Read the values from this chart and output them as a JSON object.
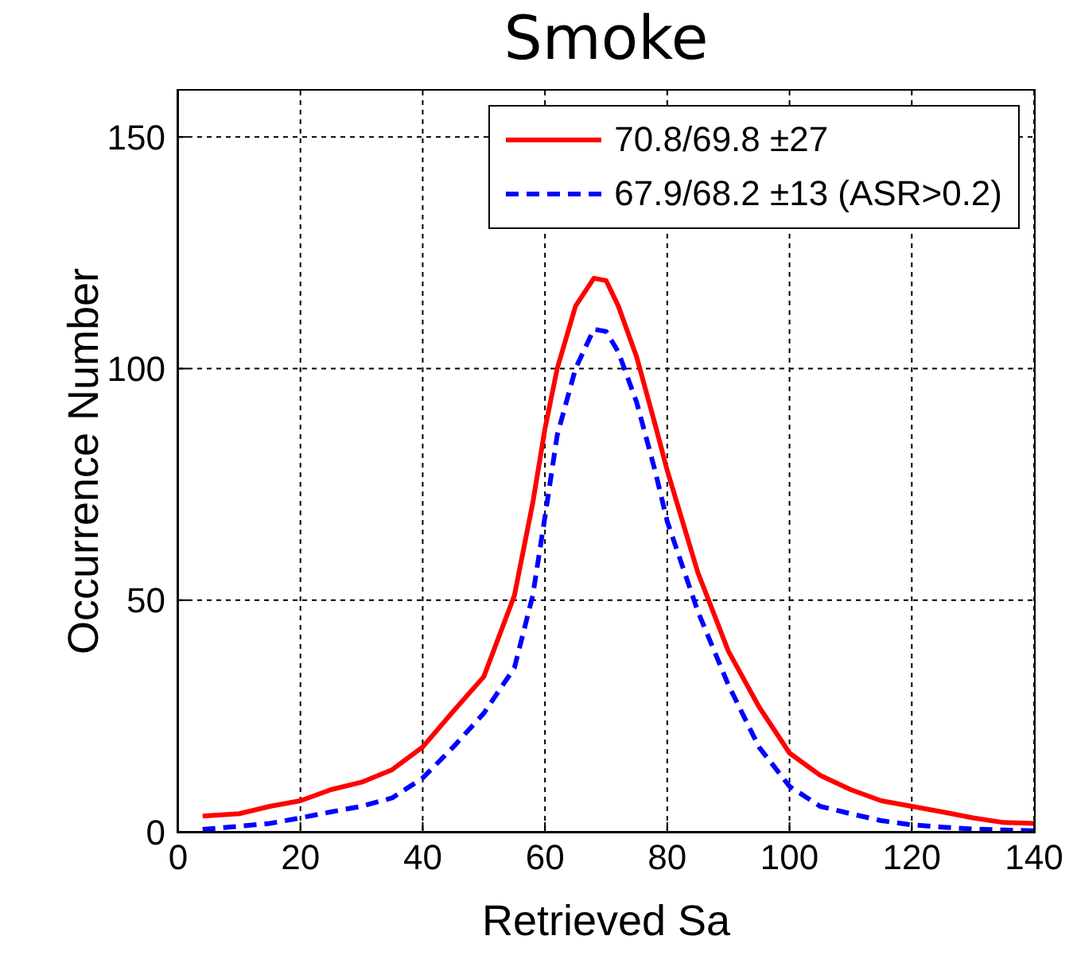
{
  "chart_data": {
    "type": "line",
    "title": "Smoke",
    "xlabel": "Retrieved Sa",
    "ylabel": "Occurrence Number",
    "xlim": [
      0,
      140
    ],
    "xticks": [
      0,
      20,
      40,
      60,
      80,
      100,
      120,
      140
    ],
    "ylim": [
      0,
      160
    ],
    "yticks": [
      0,
      50,
      100,
      150
    ],
    "grid": true,
    "legend": "top right",
    "series": [
      {
        "name": "70.8/69.8 ±27",
        "color": "#ff0000",
        "line_style": "solid",
        "x": [
          4,
          10,
          15,
          20,
          25,
          30,
          35,
          40,
          45,
          50,
          55,
          58,
          60,
          62,
          65,
          68,
          70,
          72,
          75,
          78,
          80,
          85,
          90,
          95,
          100,
          105,
          110,
          115,
          120,
          125,
          130,
          135,
          140
        ],
        "values": [
          3.4,
          3.9,
          5.5,
          6.7,
          9.1,
          10.7,
          13.4,
          18.3,
          26,
          33.5,
          51,
          71,
          87,
          100,
          113.5,
          119.5,
          119,
          113.5,
          102.5,
          88,
          78,
          56,
          39,
          27,
          17,
          12.2,
          9.1,
          6.7,
          5.5,
          4.3,
          3,
          2,
          1.8
        ]
      },
      {
        "name": "67.9/68.2 ±13 (ASR>0.2)",
        "color": "#0000ff",
        "line_style": "dashed",
        "x": [
          4,
          10,
          15,
          20,
          25,
          30,
          35,
          40,
          45,
          50,
          55,
          58,
          60,
          62,
          65,
          68,
          70,
          72,
          75,
          78,
          80,
          85,
          90,
          95,
          100,
          105,
          110,
          115,
          120,
          125,
          130,
          135,
          140
        ],
        "values": [
          0.5,
          1.2,
          1.8,
          3,
          4.3,
          5.5,
          7.3,
          11.6,
          18.3,
          25.6,
          35.4,
          51,
          68,
          85.6,
          100,
          108.5,
          108,
          103.6,
          92.7,
          78,
          67,
          47.6,
          31.7,
          18.3,
          9.8,
          5.5,
          3.9,
          2.4,
          1.5,
          1,
          0.6,
          0.4,
          0.2
        ]
      }
    ]
  }
}
